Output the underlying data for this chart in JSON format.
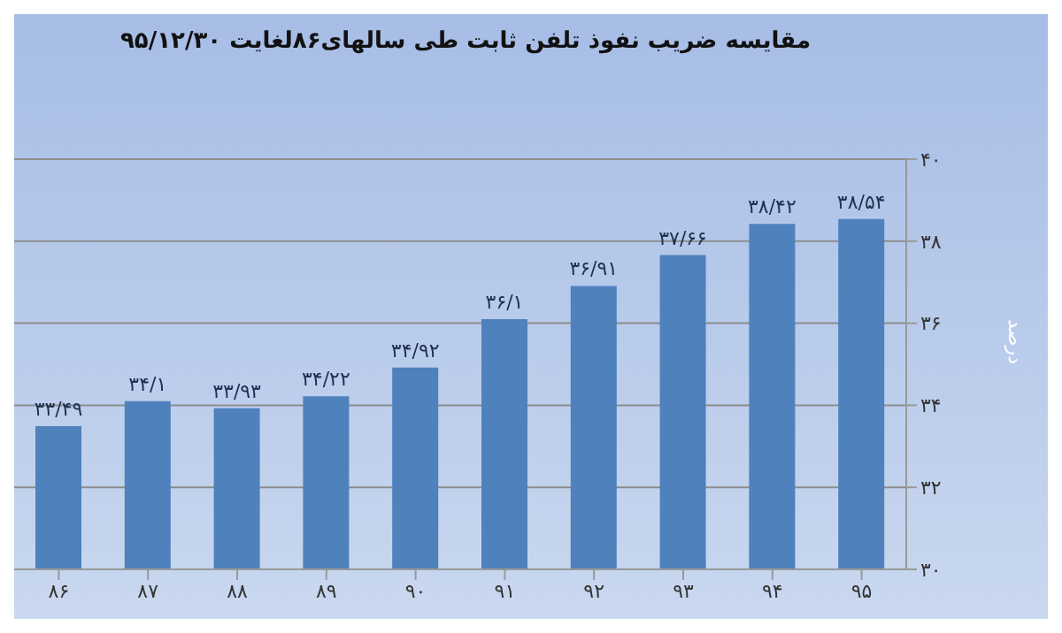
{
  "chart_data": {
    "type": "bar",
    "title": "مقایسه ضریب نفوذ تلفن ثابت طی سالهای۸۶لغایت ۹۵/۱۲/۳۰",
    "ylabel": "درصد",
    "categories": [
      "۸۶",
      "۸۷",
      "۸۸",
      "۸۹",
      "۹۰",
      "۹۱",
      "۹۲",
      "۹۳",
      "۹۴",
      "۹۵"
    ],
    "values": [
      33.49,
      34.1,
      33.93,
      34.22,
      34.92,
      36.1,
      36.91,
      37.66,
      38.42,
      38.54
    ],
    "value_labels": [
      "۳۳/۴۹",
      "۳۴/۱",
      "۳۳/۹۳",
      "۳۴/۲۲",
      "۳۴/۹۲",
      "۳۶/۱",
      "۳۶/۹۱",
      "۳۷/۶۶",
      "۳۸/۴۲",
      "۳۸/۵۴"
    ],
    "color": "#4f81bd",
    "ylim": [
      30,
      40
    ],
    "yticks": [
      {
        "value": 30,
        "label": "۳۰"
      },
      {
        "value": 32,
        "label": "۳۲"
      },
      {
        "value": 34,
        "label": "۳۴"
      },
      {
        "value": 36,
        "label": "۳۶"
      },
      {
        "value": 38,
        "label": "۳۸"
      },
      {
        "value": 40,
        "label": "۴۰"
      }
    ],
    "grid": "y",
    "legend": false
  }
}
